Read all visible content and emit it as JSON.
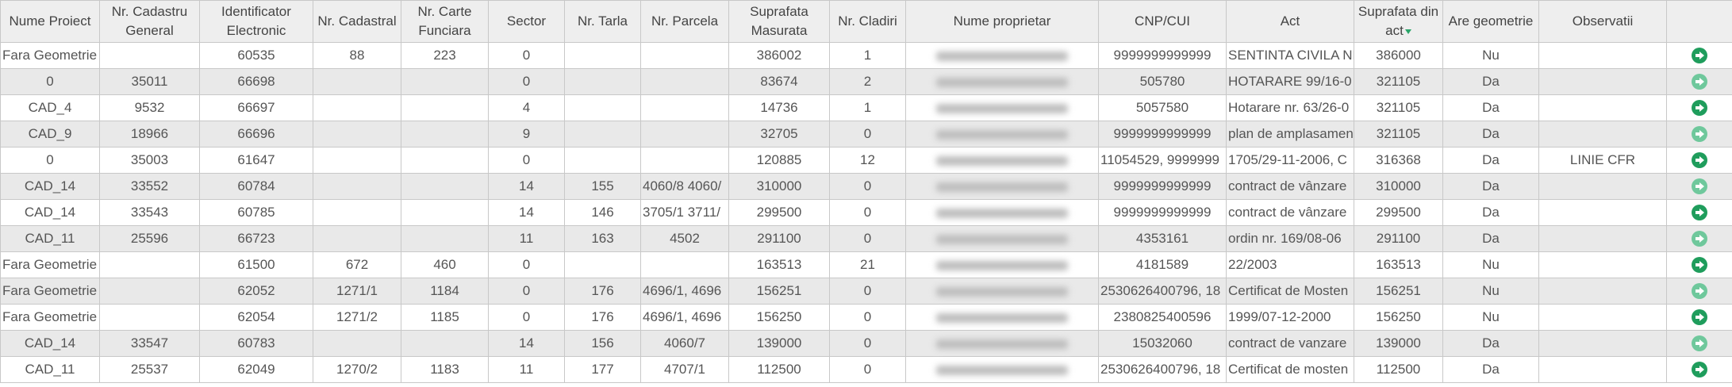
{
  "colors": {
    "accent": "#1f9d5c",
    "accent_light": "#6fc89c",
    "header_bg": "#eeeeee",
    "row_alt": "#e9e9e9"
  },
  "columns": [
    "Nume Proiect",
    "Nr. Cadastru General",
    "Identificator Electronic",
    "Nr. Cadastral",
    "Nr. Carte Funciara",
    "Sector",
    "Nr. Tarla",
    "Nr. Parcela",
    "Suprafata Masurata",
    "Nr. Cladiri",
    "Nume proprietar",
    "CNP/CUI",
    "Act",
    "Suprafata din act",
    "Are geometrie",
    "Observatii",
    ""
  ],
  "sorted_column": "Suprafata din act",
  "row_action_icon": "arrow-circle-right-icon",
  "rows": [
    [
      "Fara Geometrie",
      "",
      "60535",
      "88",
      "223",
      "0",
      "",
      "",
      "386002",
      "1",
      "",
      "9999999999999",
      "SENTINTA CIVILA NR",
      "386000",
      "Nu",
      ""
    ],
    [
      "0",
      "35011",
      "66698",
      "",
      "",
      "0",
      "",
      "",
      "83674",
      "2",
      "",
      "505780",
      "HOTARARE 99/16-0",
      "321105",
      "Da",
      ""
    ],
    [
      "CAD_4",
      "9532",
      "66697",
      "",
      "",
      "4",
      "",
      "",
      "14736",
      "1",
      "",
      "5057580",
      "Hotarare nr. 63/26-0",
      "321105",
      "Da",
      ""
    ],
    [
      "CAD_9",
      "18966",
      "66696",
      "",
      "",
      "9",
      "",
      "",
      "32705",
      "0",
      "",
      "9999999999999",
      "plan de amplasamen",
      "321105",
      "Da",
      ""
    ],
    [
      "0",
      "35003",
      "61647",
      "",
      "",
      "0",
      "",
      "",
      "120885",
      "12",
      "",
      "11054529, 9999999",
      "1705/29-11-2006, C",
      "316368",
      "Da",
      "LINIE CFR"
    ],
    [
      "CAD_14",
      "33552",
      "60784",
      "",
      "",
      "14",
      "155",
      "4060/8 4060/",
      "310000",
      "0",
      "",
      "9999999999999",
      "contract de vânzare",
      "310000",
      "Da",
      ""
    ],
    [
      "CAD_14",
      "33543",
      "60785",
      "",
      "",
      "14",
      "146",
      "3705/1 3711/",
      "299500",
      "0",
      "",
      "9999999999999",
      "contract de vânzare",
      "299500",
      "Da",
      ""
    ],
    [
      "CAD_11",
      "25596",
      "66723",
      "",
      "",
      "11",
      "163",
      "4502",
      "291100",
      "0",
      "",
      "4353161",
      "ordin nr. 169/08-06",
      "291100",
      "Da",
      ""
    ],
    [
      "Fara Geometrie",
      "",
      "61500",
      "672",
      "460",
      "0",
      "",
      "",
      "163513",
      "21",
      "",
      "4181589",
      "22/2003",
      "163513",
      "Nu",
      ""
    ],
    [
      "Fara Geometrie",
      "",
      "62052",
      "1271/1",
      "1184",
      "0",
      "176",
      "4696/1, 4696",
      "156251",
      "0",
      "",
      "2530626400796, 18",
      "Certificat de Mosten",
      "156251",
      "Nu",
      ""
    ],
    [
      "Fara Geometrie",
      "",
      "62054",
      "1271/2",
      "1185",
      "0",
      "176",
      "4696/1, 4696",
      "156250",
      "0",
      "",
      "2380825400596",
      "1999/07-12-2000",
      "156250",
      "Nu",
      ""
    ],
    [
      "CAD_14",
      "33547",
      "60783",
      "",
      "",
      "14",
      "156",
      "4060/7",
      "139000",
      "0",
      "",
      "15032060",
      "contract de vanzare",
      "139000",
      "Da",
      ""
    ],
    [
      "CAD_11",
      "25537",
      "62049",
      "1270/2",
      "1183",
      "11",
      "177",
      "4707/1",
      "112500",
      "0",
      "",
      "2530626400796, 18",
      "Certificat de mosten",
      "112500",
      "Da",
      ""
    ]
  ]
}
